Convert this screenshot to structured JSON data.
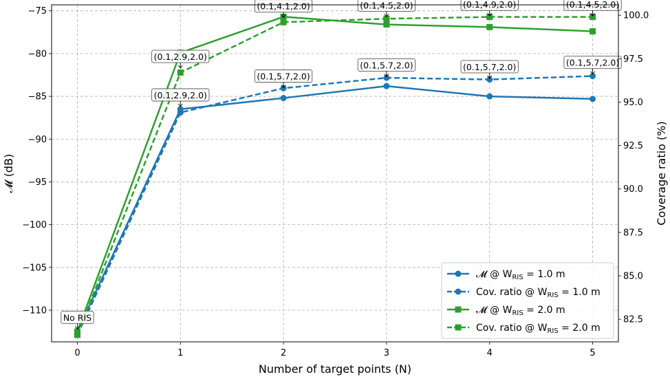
{
  "chart_data": {
    "type": "line",
    "xlabel": "Number of target points (N)",
    "ylabel_left": "𝓜 (dB)",
    "ylabel_right": "Coverage ratio (%)",
    "x": [
      0,
      1,
      2,
      3,
      4,
      5
    ],
    "xlim": [
      -0.25,
      5.25
    ],
    "ylim_left": [
      -113.7,
      -74.3
    ],
    "ylim_right": [
      81.2,
      100.6
    ],
    "yticks_left": [
      -110,
      -105,
      -100,
      -95,
      -90,
      -85,
      -80,
      -75
    ],
    "yticks_right": [
      82.5,
      85.0,
      87.5,
      90.0,
      92.5,
      95.0,
      97.5,
      100.0
    ],
    "ytick_labels_left": [
      "−110",
      "−105",
      "−100",
      "−95",
      "−90",
      "−85",
      "−80",
      "−75"
    ],
    "ytick_labels_right": [
      "82.5",
      "85.0",
      "87.5",
      "90.0",
      "92.5",
      "95.0",
      "97.5",
      "100.0"
    ],
    "xticks": [
      0,
      1,
      2,
      3,
      4,
      5
    ],
    "xtick_labels": [
      "0",
      "1",
      "2",
      "3",
      "4",
      "5"
    ],
    "grid": true,
    "legend_position": "lower-right",
    "series": [
      {
        "name": "𝓜 @ W_RIS = 1.0 m",
        "legend_text": "𝓜 @ W",
        "legend_sub": "RIS",
        "legend_tail": " = 1.0 m",
        "axis": "left",
        "color": "#1f77b4",
        "dash": false,
        "marker": "circle",
        "values": [
          -112.5,
          -86.5,
          -85.2,
          -83.8,
          -85.0,
          -85.3
        ]
      },
      {
        "name": "Cov. ratio @ W_RIS = 1.0 m",
        "legend_text": "Cov. ratio @ W",
        "legend_sub": "RIS",
        "legend_tail": " = 1.0 m",
        "axis": "right",
        "color": "#1f77b4",
        "dash": true,
        "marker": "circle",
        "values": [
          81.6,
          94.4,
          95.8,
          96.4,
          96.3,
          96.5
        ]
      },
      {
        "name": "𝓜 @ W_RIS = 2.0 m",
        "legend_text": "𝓜 @ W",
        "legend_sub": "RIS",
        "legend_tail": " = 2.0 m",
        "axis": "left",
        "color": "#2ca02c",
        "dash": false,
        "marker": "square",
        "values": [
          -112.5,
          -79.9,
          -75.7,
          -76.6,
          -76.9,
          -77.4
        ]
      },
      {
        "name": "Cov. ratio @ W_RIS = 2.0 m",
        "legend_text": "Cov. ratio @ W",
        "legend_sub": "RIS",
        "legend_tail": " = 2.0 m",
        "axis": "right",
        "color": "#2ca02c",
        "dash": true,
        "marker": "square",
        "values": [
          81.6,
          96.7,
          99.6,
          99.8,
          99.9,
          99.9
        ]
      }
    ],
    "annotations": [
      {
        "text": "No RIS",
        "x": 0,
        "y": -112.2,
        "axis": "left"
      },
      {
        "text": "(0.1,2.9,2.0)",
        "x": 1,
        "y": -86.2,
        "axis": "left"
      },
      {
        "text": "(0.1,5.7,2.0)",
        "x": 2,
        "y": -84.0,
        "axis": "left"
      },
      {
        "text": "(0.1,5.7,2.0)",
        "x": 3,
        "y": -82.7,
        "axis": "left"
      },
      {
        "text": "(0.1,5.7,2.0)",
        "x": 4,
        "y": -82.9,
        "axis": "left"
      },
      {
        "text": "(0.1,5.7,2.0)",
        "x": 5,
        "y": -82.4,
        "axis": "left"
      },
      {
        "text": "(0.1,2.9,2.0)",
        "x": 1,
        "y": -81.7,
        "axis": "left"
      },
      {
        "text": "(0.1,4.1,2.0)",
        "x": 2,
        "y": -75.8,
        "axis": "left"
      },
      {
        "text": "(0.1,4.5,2.0)",
        "x": 3,
        "y": -75.7,
        "axis": "left"
      },
      {
        "text": "(0.1,4.9,2.0)",
        "x": 4,
        "y": -75.6,
        "axis": "left"
      },
      {
        "text": "(0.1,4.5,2.0)",
        "x": 5,
        "y": -75.6,
        "axis": "left"
      }
    ]
  }
}
